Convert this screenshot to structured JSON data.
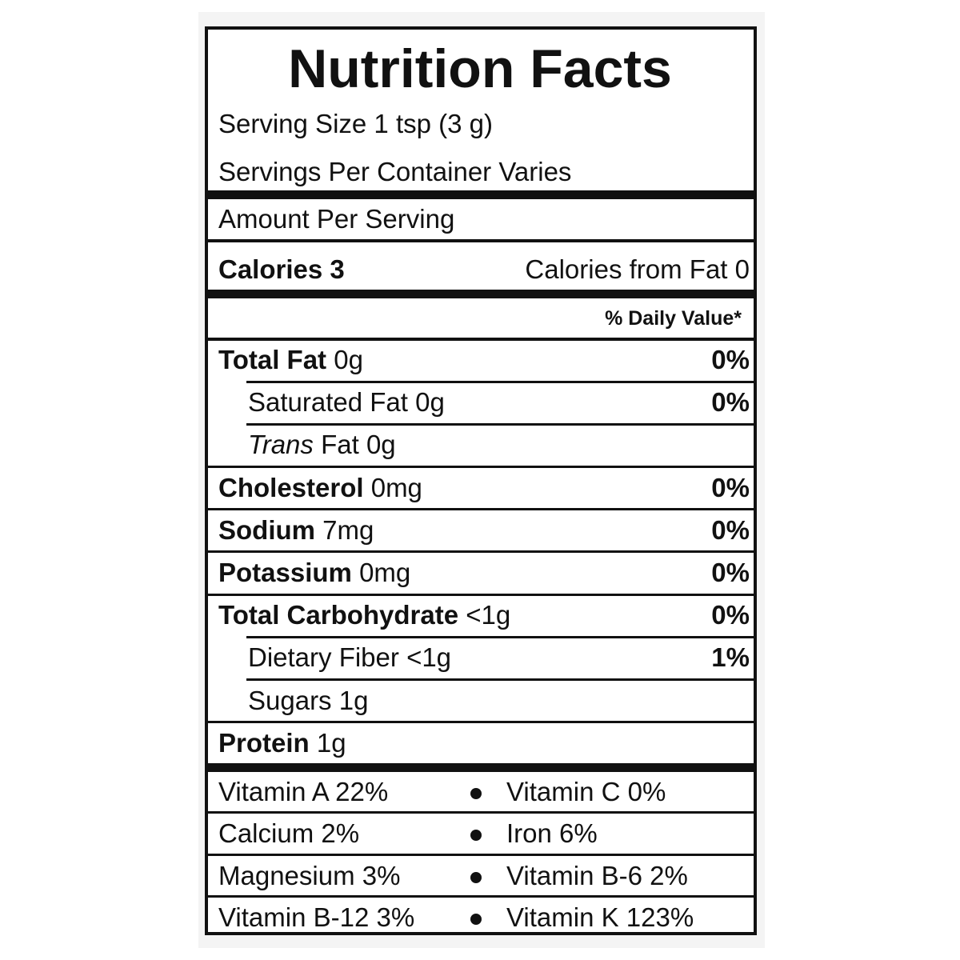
{
  "title": "Nutrition Facts",
  "serving_size": "Serving Size 1 tsp (3 g)",
  "servings_per_container": "Servings Per Container Varies",
  "amount_per_serving": "Amount Per Serving",
  "calories": "Calories 3",
  "calories_from_fat": "Calories from Fat 0",
  "daily_value_header": "% Daily Value*",
  "nutrients": [
    {
      "name": "Total Fat",
      "amount": "0g",
      "dv": "0%",
      "sub": [
        {
          "name": "Saturated Fat",
          "amount": "0g",
          "dv": "0%"
        },
        {
          "name_italic": "Trans",
          "name": "Fat",
          "amount": "0g"
        }
      ]
    },
    {
      "name": "Cholesterol",
      "amount": "0mg",
      "dv": "0%"
    },
    {
      "name": "Sodium",
      "amount": "7mg",
      "dv": "0%"
    },
    {
      "name": "Potassium",
      "amount": "0mg",
      "dv": "0%"
    },
    {
      "name": "Total Carbohydrate",
      "amount": "<1g",
      "dv": "0%",
      "sub": [
        {
          "name": "Dietary Fiber",
          "amount": "<1g",
          "dv": "1%"
        },
        {
          "name": "Sugars",
          "amount": "1g"
        }
      ]
    },
    {
      "name": "Protein",
      "amount": "1g"
    }
  ],
  "vitamins": [
    {
      "left": "Vitamin A 22%",
      "right": "Vitamin C 0%"
    },
    {
      "left": "Calcium 2%",
      "right": "Iron 6%"
    },
    {
      "left": "Magnesium 3%",
      "right": "Vitamin B-6 2%"
    },
    {
      "left": "Vitamin B-12 3%",
      "right": "Vitamin K 123%"
    }
  ]
}
